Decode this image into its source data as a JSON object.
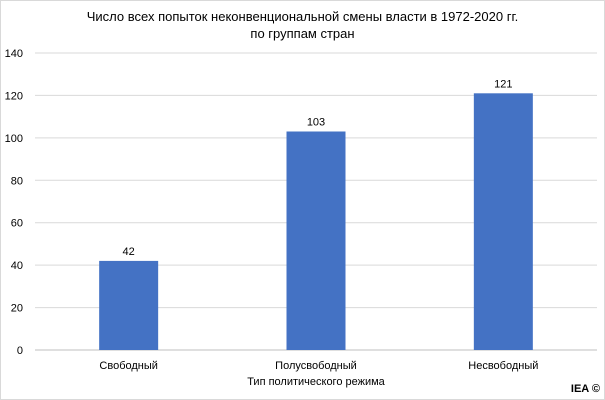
{
  "chart_data": {
    "type": "bar",
    "title": "Число всех попыток неконвенциональной смены власти в 1972-2020 гг.",
    "subtitle": "по группам стран",
    "xlabel": "Тип политического режима",
    "ylabel": "",
    "categories": [
      "Свободный",
      "Полусвободный",
      "Несвободный"
    ],
    "values": [
      42,
      103,
      121
    ],
    "ylim": [
      0,
      140
    ],
    "yticks": [
      0,
      20,
      40,
      60,
      80,
      100,
      120,
      140
    ],
    "bar_color": "#4472c4",
    "grid": true,
    "legend": "none"
  },
  "credit": "IEA ©"
}
